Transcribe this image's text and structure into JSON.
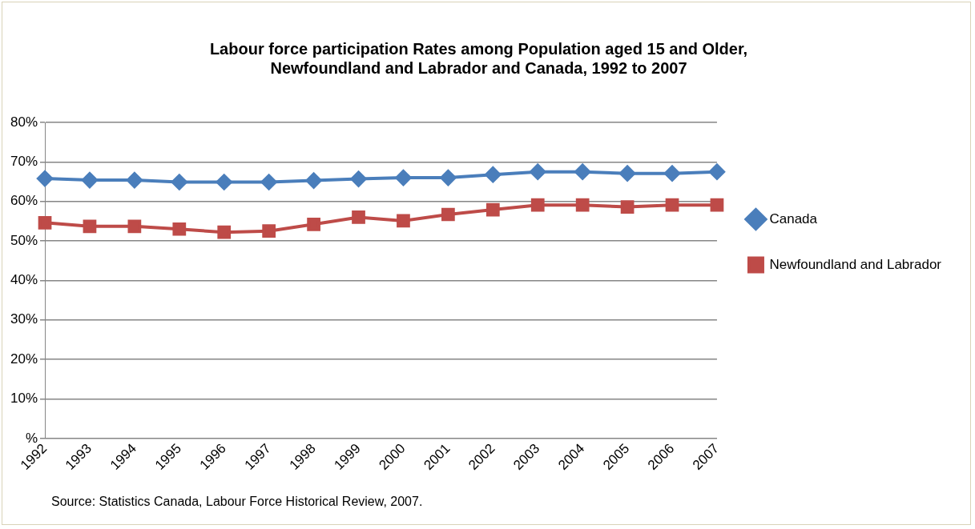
{
  "chart_data": {
    "type": "line",
    "title": [
      "Labour force participation Rates among Population aged 15 and Older,",
      "Newfoundland and Labrador and Canada, 1992 to 2007"
    ],
    "categories": [
      "1992",
      "1993",
      "1994",
      "1995",
      "1996",
      "1997",
      "1998",
      "1999",
      "2000",
      "2001",
      "2002",
      "2003",
      "2004",
      "2005",
      "2006",
      "2007"
    ],
    "series": [
      {
        "name": "Canada",
        "color": "#4a7ebb",
        "marker": "diamond",
        "values": [
          65.8,
          65.4,
          65.4,
          64.9,
          64.9,
          64.9,
          65.3,
          65.7,
          66.0,
          66.0,
          66.8,
          67.5,
          67.5,
          67.1,
          67.1,
          67.5
        ]
      },
      {
        "name": "Newfoundland and Labrador",
        "color": "#be4b48",
        "marker": "square",
        "values": [
          54.6,
          53.7,
          53.7,
          53.0,
          52.2,
          52.5,
          54.2,
          56.0,
          55.1,
          56.7,
          57.9,
          59.1,
          59.1,
          58.6,
          59.1,
          59.1
        ]
      }
    ],
    "ylim": [
      0,
      80
    ],
    "yticks": [
      {
        "value": 0,
        "label": "%"
      },
      {
        "value": 10,
        "label": "10%"
      },
      {
        "value": 20,
        "label": "20%"
      },
      {
        "value": 30,
        "label": "30%"
      },
      {
        "value": 40,
        "label": "40%"
      },
      {
        "value": 50,
        "label": "50%"
      },
      {
        "value": 60,
        "label": "60%"
      },
      {
        "value": 70,
        "label": "70%"
      },
      {
        "value": 80,
        "label": "80%"
      }
    ],
    "grid": "y",
    "legend": "right",
    "annotations": [
      "Source: Statistics Canada, Labour Force Historical Review, 2007."
    ]
  }
}
